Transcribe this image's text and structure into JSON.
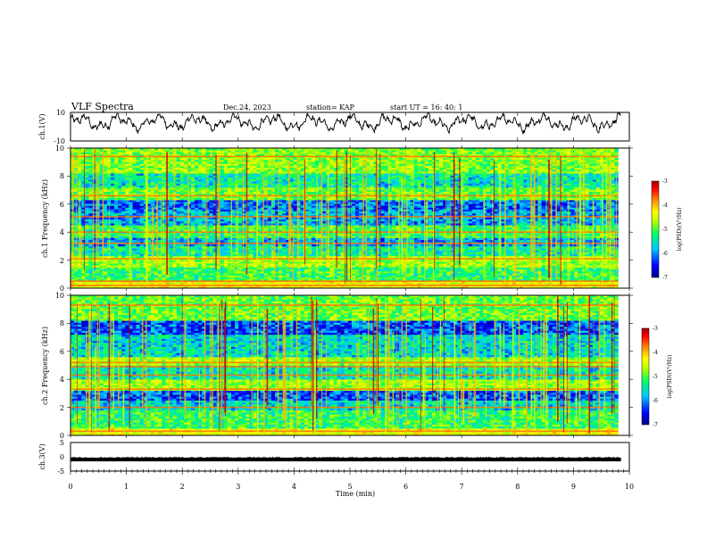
{
  "header": {
    "title": "VLF Spectra",
    "date": "Dec.24, 2023",
    "station": "station= KAP",
    "start_ut": "start  UT =   16: 40: 1"
  },
  "chart_data": [
    {
      "type": "line",
      "panel": "ch1-waveform",
      "ylabel": "ch.1(V)",
      "ylim": [
        -10,
        10
      ],
      "ytick_labels": [
        "10",
        "-10"
      ],
      "xlim": [
        0,
        10
      ],
      "description": "noisy oscillating voltage trace, mostly between about -6 and 9 V"
    },
    {
      "type": "heatmap",
      "panel": "ch1-spectrogram",
      "ylabel": "ch.1 Frequency (kHz)",
      "ylim": [
        0,
        10
      ],
      "ytick_labels": [
        "0",
        "2",
        "4",
        "6",
        "8",
        "10"
      ],
      "xlim": [
        0,
        9.8
      ],
      "background_bands_khz": [
        {
          "from": 0,
          "to": 0.5,
          "level": -4.6
        },
        {
          "from": 0.5,
          "to": 1.5,
          "level": -5.4
        },
        {
          "from": 1.5,
          "to": 2.3,
          "level": -5.0
        },
        {
          "from": 2.3,
          "to": 3.0,
          "level": -5.6
        },
        {
          "from": 3.0,
          "to": 3.6,
          "level": -6.0
        },
        {
          "from": 3.6,
          "to": 4.5,
          "level": -5.4
        },
        {
          "from": 4.5,
          "to": 5.5,
          "level": -6.0
        },
        {
          "from": 5.5,
          "to": 6.3,
          "level": -6.2
        },
        {
          "from": 6.3,
          "to": 7.2,
          "level": -5.2
        },
        {
          "from": 7.2,
          "to": 8.2,
          "level": -5.7
        },
        {
          "from": 8.2,
          "to": 10.0,
          "level": -5.1
        }
      ],
      "narrowband_lines_khz": [
        0.2,
        0.5,
        2.1,
        3.2,
        4.0,
        5.1,
        6.6,
        9.4
      ],
      "colorbar": {
        "label": "log(PSD)(V²/Hz)",
        "range": [
          -7,
          -3
        ],
        "ticks": [
          "-3",
          "-4",
          "-5",
          "-6",
          "-7"
        ]
      }
    },
    {
      "type": "heatmap",
      "panel": "ch2-spectrogram",
      "ylabel": "ch.2 Frequency (kHz)",
      "ylim": [
        0,
        10
      ],
      "ytick_labels": [
        "0",
        "2",
        "4",
        "6",
        "8",
        "10"
      ],
      "xlim": [
        0,
        9.8
      ],
      "background_bands_khz": [
        {
          "from": 0,
          "to": 0.5,
          "level": -4.6
        },
        {
          "from": 0.5,
          "to": 1.8,
          "level": -5.4
        },
        {
          "from": 1.8,
          "to": 2.5,
          "level": -5.8
        },
        {
          "from": 2.5,
          "to": 3.2,
          "level": -6.3
        },
        {
          "from": 3.2,
          "to": 4.0,
          "level": -5.0
        },
        {
          "from": 4.0,
          "to": 5.0,
          "level": -5.7
        },
        {
          "from": 5.0,
          "to": 5.6,
          "level": -5.0
        },
        {
          "from": 5.6,
          "to": 7.2,
          "level": -5.8
        },
        {
          "from": 7.2,
          "to": 8.2,
          "level": -6.3
        },
        {
          "from": 8.2,
          "to": 10.0,
          "level": -5.2
        }
      ],
      "narrowband_lines_khz": [
        0.3,
        2.0,
        3.3,
        4.3,
        4.9,
        5.2,
        9.3
      ],
      "colorbar": {
        "label": "log(PSD)(V²/Hz)",
        "range": [
          -7,
          -3
        ],
        "ticks": [
          "-3",
          "-4",
          "-5",
          "-6",
          "-7"
        ]
      }
    },
    {
      "type": "line",
      "panel": "ch3-trace",
      "ylabel": "ch.3(V)",
      "ylim": [
        -5,
        5
      ],
      "ytick_labels": [
        "5",
        "0",
        "-5"
      ],
      "xlim": [
        0,
        10
      ],
      "xlabel": "Time  (min)",
      "xtick_labels": [
        "0",
        "1",
        "2",
        "3",
        "4",
        "5",
        "6",
        "7",
        "8",
        "9",
        "10"
      ],
      "description": "nearly constant level at about -1 V with small ripple"
    }
  ],
  "colors": {
    "colormap": [
      "#00008c",
      "#0000ff",
      "#00c8ff",
      "#00ff64",
      "#b4ff00",
      "#ffff00",
      "#ff8c00",
      "#ff0000",
      "#a00000"
    ],
    "trace": "#000000"
  }
}
